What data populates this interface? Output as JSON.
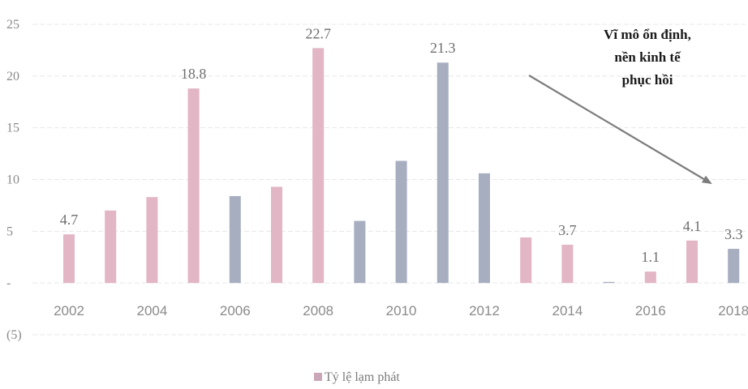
{
  "chart_data": {
    "type": "bar",
    "x": [
      2002,
      2003,
      2004,
      2005,
      2006,
      2007,
      2008,
      2009,
      2010,
      2011,
      2012,
      2013,
      2014,
      2015,
      2016,
      2017,
      2018
    ],
    "x_tick_labels": [
      "2002",
      "2004",
      "2006",
      "2008",
      "2010",
      "2012",
      "2014",
      "2016",
      "2018"
    ],
    "series": [
      {
        "name": "Tỷ lệ lạm phát",
        "values": [
          4.7,
          7.0,
          8.3,
          18.8,
          8.4,
          9.3,
          22.7,
          6.0,
          11.8,
          21.3,
          10.6,
          4.4,
          3.7,
          0.1,
          1.1,
          4.1,
          3.3
        ]
      }
    ],
    "data_labels": [
      {
        "x": 2002,
        "text": "4.7"
      },
      {
        "x": 2005,
        "text": "18.8"
      },
      {
        "x": 2008,
        "text": "22.7"
      },
      {
        "x": 2011,
        "text": "21.3"
      },
      {
        "x": 2014,
        "text": "3.7"
      },
      {
        "x": 2016,
        "text": "1.1"
      },
      {
        "x": 2017,
        "text": "4.1"
      },
      {
        "x": 2018,
        "text": "3.3"
      }
    ],
    "y_tick_labels": [
      "25",
      "20",
      "15",
      "10",
      "5",
      "-",
      "(5)"
    ],
    "ylim": [
      -5,
      25
    ],
    "grid": true,
    "legend_position": "bottom",
    "annotation": {
      "lines": [
        "Vĩ mô ổn định,",
        "nền kinh tế",
        "phục hồi"
      ]
    },
    "colors": {
      "bar_pink": "#e2b6c4",
      "bar_blue": "#a7aec0",
      "arrow": "#7d7d7d",
      "grid": "#e8e8e8"
    }
  }
}
